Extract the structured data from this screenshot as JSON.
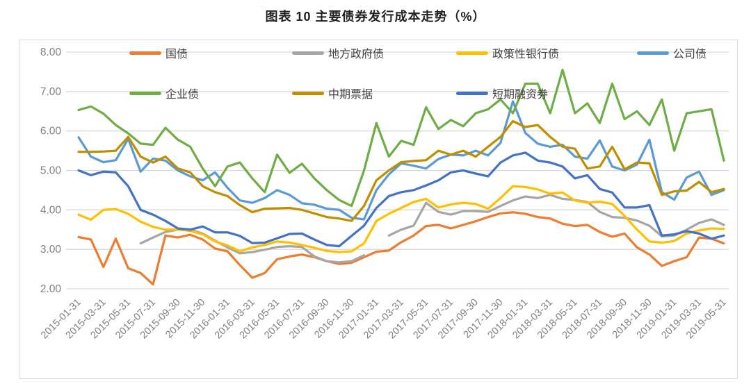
{
  "title": "图表 10 主要债券发行成本走势（%）",
  "axis": {
    "y_tick_labels": [
      "8.00",
      "7.00",
      "6.00",
      "5.00",
      "4.00",
      "3.00",
      "2.00"
    ],
    "y_min": 2.0,
    "y_max": 8.0
  },
  "chart_data": {
    "type": "line",
    "title": "图表 10 主要债券发行成本走势（%）",
    "xlabel": "",
    "ylabel": "",
    "ylim": [
      2.0,
      8.0
    ],
    "grid": true,
    "legend_position": "top-inside-two-rows",
    "x": [
      "2015-01-31",
      "2015-02-28",
      "2015-03-31",
      "2015-04-30",
      "2015-05-31",
      "2015-06-30",
      "2015-07-31",
      "2015-08-31",
      "2015-09-30",
      "2015-10-31",
      "2015-11-30",
      "2015-12-31",
      "2016-01-31",
      "2016-02-29",
      "2016-03-31",
      "2016-04-30",
      "2016-05-31",
      "2016-06-30",
      "2016-07-31",
      "2016-08-31",
      "2016-09-30",
      "2016-10-31",
      "2016-11-30",
      "2016-12-31",
      "2017-01-31",
      "2017-02-28",
      "2017-03-31",
      "2017-04-30",
      "2017-05-31",
      "2017-06-30",
      "2017-07-31",
      "2017-08-31",
      "2017-09-30",
      "2017-10-31",
      "2017-11-30",
      "2017-12-31",
      "2018-01-31",
      "2018-02-28",
      "2018-03-31",
      "2018-04-30",
      "2018-05-31",
      "2018-06-30",
      "2018-07-31",
      "2018-08-31",
      "2018-09-30",
      "2018-10-31",
      "2018-11-30",
      "2018-12-31",
      "2019-01-31",
      "2019-02-28",
      "2019-03-31",
      "2019-04-30",
      "2019-05-31"
    ],
    "x_tick_labels": [
      "2015-01-31",
      "2015-03-31",
      "2015-05-31",
      "2015-07-31",
      "2015-09-30",
      "2015-11-30",
      "2016-01-31",
      "2016-03-31",
      "2016-05-31",
      "2016-07-31",
      "2016-09-30",
      "2016-11-30",
      "2017-01-31",
      "2017-03-31",
      "2017-05-31",
      "2017-07-31",
      "2017-09-30",
      "2017-11-30",
      "2018-01-31",
      "2018-03-31",
      "2018-05-31",
      "2018-07-31",
      "2018-09-30",
      "2018-11-30",
      "2019-01-31",
      "2019-03-31",
      "2019-05-31"
    ],
    "series": [
      {
        "key": "treasury-bond",
        "name": "国债",
        "color": "#ED7D31",
        "values": [
          3.31,
          3.25,
          2.55,
          3.27,
          2.52,
          2.4,
          2.11,
          3.35,
          3.3,
          3.37,
          3.25,
          3.02,
          2.95,
          2.6,
          2.28,
          2.4,
          2.75,
          2.82,
          2.87,
          2.8,
          2.7,
          2.63,
          2.66,
          2.8,
          2.94,
          2.97,
          3.18,
          3.35,
          3.59,
          3.62,
          3.53,
          3.62,
          3.71,
          3.82,
          3.91,
          3.94,
          3.9,
          3.82,
          3.78,
          3.65,
          3.59,
          3.62,
          3.44,
          3.32,
          3.4,
          3.05,
          2.87,
          2.58,
          2.7,
          2.8,
          3.3,
          3.27,
          3.15
        ]
      },
      {
        "key": "local-government-bond",
        "name": "地方政府债",
        "color": "#A6A6A6",
        "values": [
          null,
          null,
          null,
          null,
          null,
          3.15,
          3.3,
          3.44,
          3.5,
          3.5,
          3.4,
          3.22,
          3.05,
          2.9,
          2.93,
          2.99,
          3.06,
          3.08,
          3.06,
          2.82,
          2.7,
          2.67,
          2.7,
          2.85,
          null,
          3.35,
          3.5,
          3.6,
          4.18,
          3.95,
          3.88,
          3.97,
          3.97,
          3.95,
          4.1,
          4.24,
          4.34,
          4.3,
          4.38,
          4.28,
          4.25,
          4.2,
          3.95,
          3.82,
          3.8,
          3.73,
          3.6,
          3.33,
          3.35,
          3.5,
          3.67,
          3.76,
          3.62
        ]
      },
      {
        "key": "policy-bank-bond",
        "name": "政策性银行债",
        "color": "#FFC000",
        "values": [
          3.88,
          3.75,
          4.0,
          4.02,
          3.9,
          3.7,
          3.57,
          3.5,
          3.5,
          3.47,
          3.38,
          3.2,
          3.1,
          2.95,
          3.05,
          3.11,
          3.2,
          3.17,
          3.11,
          3.04,
          2.96,
          2.93,
          2.95,
          3.15,
          3.72,
          3.9,
          4.05,
          4.2,
          4.28,
          4.06,
          4.14,
          4.18,
          4.15,
          4.03,
          4.3,
          4.6,
          4.58,
          4.52,
          4.41,
          4.44,
          4.24,
          4.18,
          4.21,
          4.15,
          3.85,
          3.5,
          3.2,
          3.17,
          3.21,
          3.4,
          3.48,
          3.53,
          3.52
        ]
      },
      {
        "key": "corporate-bond",
        "name": "公司债",
        "color": "#5B9BD5",
        "values": [
          5.84,
          5.35,
          5.21,
          5.26,
          5.8,
          4.97,
          5.3,
          5.25,
          5.0,
          4.85,
          4.75,
          4.95,
          4.56,
          4.24,
          4.18,
          4.3,
          4.5,
          4.38,
          4.17,
          4.13,
          4.03,
          4.0,
          3.8,
          3.76,
          4.5,
          4.9,
          5.18,
          5.12,
          5.05,
          5.29,
          5.4,
          5.38,
          5.5,
          5.38,
          5.7,
          6.75,
          5.95,
          5.68,
          5.6,
          5.65,
          5.35,
          5.3,
          5.76,
          5.1,
          5.0,
          5.15,
          5.78,
          4.45,
          4.26,
          4.82,
          4.97,
          4.38,
          4.5
        ]
      },
      {
        "key": "enterprise-bond",
        "name": "企业债",
        "color": "#70AD47",
        "values": [
          6.53,
          6.62,
          6.44,
          6.15,
          5.94,
          5.68,
          5.65,
          6.08,
          5.78,
          5.6,
          5.05,
          4.6,
          5.1,
          5.2,
          4.8,
          4.45,
          5.4,
          4.94,
          5.17,
          4.8,
          4.5,
          4.25,
          4.1,
          5.0,
          6.2,
          5.35,
          5.75,
          5.65,
          6.6,
          6.05,
          6.28,
          6.12,
          6.45,
          6.55,
          6.8,
          6.45,
          7.2,
          7.2,
          6.45,
          7.55,
          6.45,
          6.7,
          6.2,
          7.2,
          6.3,
          6.5,
          6.15,
          6.8,
          5.5,
          6.45,
          6.5,
          6.55,
          5.25
        ]
      },
      {
        "key": "medium-term-note",
        "name": "中期票据",
        "color": "#BF8F00",
        "values": [
          5.47,
          5.47,
          5.48,
          5.5,
          5.85,
          5.35,
          5.2,
          5.35,
          5.05,
          4.95,
          4.6,
          4.45,
          4.35,
          4.12,
          3.94,
          4.03,
          4.04,
          4.05,
          4.0,
          3.91,
          3.82,
          3.78,
          3.72,
          4.1,
          4.75,
          5.0,
          5.21,
          5.24,
          5.26,
          5.5,
          5.4,
          5.5,
          5.35,
          5.6,
          5.85,
          6.25,
          6.1,
          6.15,
          5.85,
          5.6,
          5.55,
          5.05,
          5.1,
          5.6,
          5.03,
          5.2,
          5.18,
          4.38,
          4.47,
          4.49,
          4.71,
          4.45,
          4.53
        ]
      },
      {
        "key": "short-term-financing-bill",
        "name": "短期融资券",
        "color": "#4472C4",
        "values": [
          5.0,
          4.88,
          4.97,
          4.95,
          4.6,
          4.0,
          3.88,
          3.72,
          3.53,
          3.5,
          3.58,
          3.43,
          3.43,
          3.34,
          3.16,
          3.17,
          3.28,
          3.39,
          3.4,
          3.25,
          3.11,
          3.08,
          3.34,
          3.6,
          4.05,
          4.35,
          4.45,
          4.5,
          4.62,
          4.75,
          4.95,
          5.0,
          4.92,
          4.85,
          5.2,
          5.38,
          5.45,
          5.25,
          5.2,
          5.1,
          4.8,
          4.88,
          4.53,
          4.44,
          4.06,
          4.06,
          4.12,
          3.35,
          3.38,
          3.46,
          3.4,
          3.27,
          3.35
        ]
      }
    ]
  },
  "style": {
    "gridline_color": "#d9d9d9",
    "axis_text_color": "#808080",
    "legend_text_color": "#404040",
    "title_color": "#222222"
  }
}
